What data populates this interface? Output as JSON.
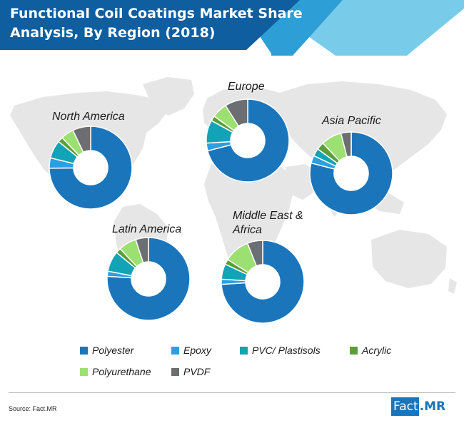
{
  "title": {
    "line1": "Functional Coil Coatings Market Share",
    "line2": "Analysis, By Region (2018)"
  },
  "source": "Source: Fact.MR",
  "logo": {
    "part1": "Fact",
    "part2": ".MR"
  },
  "colors": {
    "Polyester": "#1b75bb",
    "Epoxy": "#2b9fe0",
    "PVC/ Plastisols": "#13a3b7",
    "Acrylic": "#5c9e3a",
    "Polyurethane": "#9be070",
    "PVDF": "#6d6e71",
    "header_dark": "#0f5ea0",
    "header_mid": "#2e9fd6",
    "header_light": "#79cbea",
    "map": "#e6e6e6"
  },
  "chart_data": {
    "type": "pie",
    "variant": "donut",
    "legend": [
      "Polyester",
      "Epoxy",
      "PVC/ Plastisols",
      "Acrylic",
      "Polyurethane",
      "PVDF"
    ],
    "charts": [
      {
        "region": "North America",
        "values": {
          "Polyester": 74,
          "Epoxy": 4,
          "PVC/ Plastisols": 7,
          "Acrylic": 2,
          "Polyurethane": 5,
          "PVDF": 7
        }
      },
      {
        "region": "Europe",
        "values": {
          "Polyester": 71,
          "Epoxy": 3,
          "PVC/ Plastisols": 9,
          "Acrylic": 2,
          "Polyurethane": 6,
          "PVDF": 9
        }
      },
      {
        "region": "Asia Pacific",
        "values": {
          "Polyester": 79,
          "Epoxy": 3,
          "PVC/ Plastisols": 3,
          "Acrylic": 3,
          "Polyurethane": 8,
          "PVDF": 4
        }
      },
      {
        "region": "Latin America",
        "values": {
          "Polyester": 76,
          "Epoxy": 2,
          "PVC/ Plastisols": 8,
          "Acrylic": 2,
          "Polyurethane": 7,
          "PVDF": 5
        }
      },
      {
        "region": "Middle East & Africa",
        "values": {
          "Polyester": 74,
          "Epoxy": 2,
          "PVC/ Plastisols": 6,
          "Acrylic": 2,
          "Polyurethane": 10,
          "PVDF": 6
        }
      }
    ]
  }
}
